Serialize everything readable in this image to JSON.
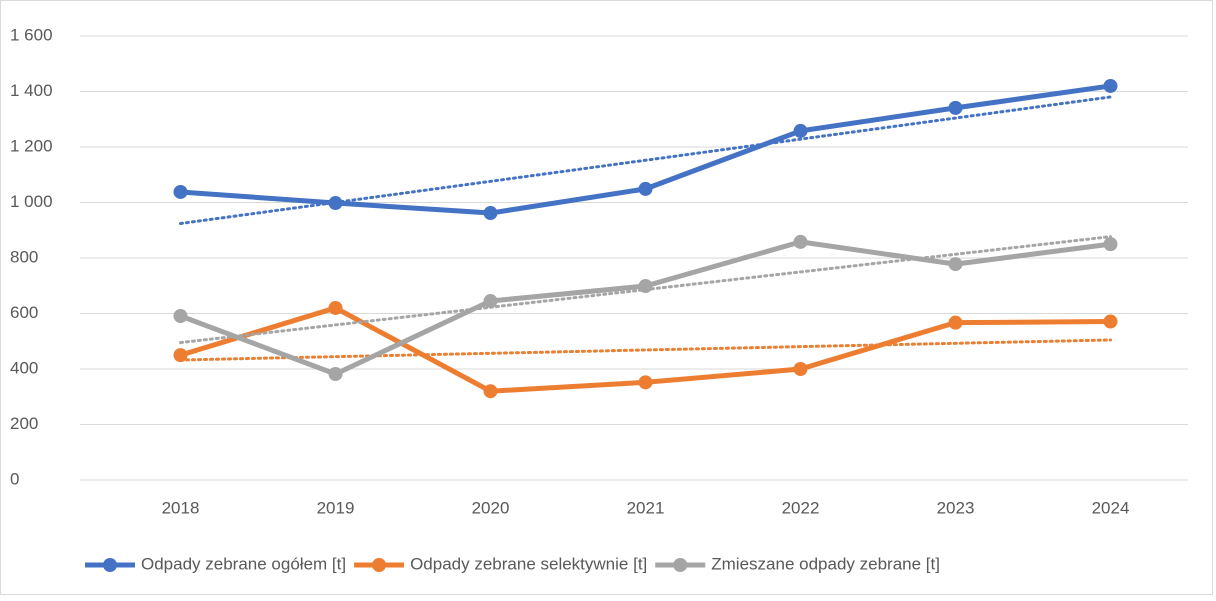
{
  "chart_data": {
    "type": "line",
    "categories": [
      "2018",
      "2019",
      "2020",
      "2021",
      "2022",
      "2023",
      "2024"
    ],
    "series": [
      {
        "name": "Odpady zebrane ogółem [t]",
        "color": "#4472c4",
        "values": [
          1038,
          998,
          962,
          1049,
          1258,
          1341,
          1420
        ]
      },
      {
        "name": "Odpady zebrane selektywnie [t]",
        "color": "#ed7d31",
        "values": [
          450,
          620,
          320,
          352,
          400,
          567,
          571
        ]
      },
      {
        "name": "Zmieszane odpady zebrane [t]",
        "color": "#a5a5a5",
        "values": [
          591,
          382,
          645,
          699,
          858,
          778,
          850
        ]
      }
    ],
    "ylim": [
      0,
      1600
    ],
    "yticks": [
      0,
      200,
      400,
      600,
      800,
      {
        "value": 1000,
        "label": "1 000"
      },
      {
        "value": 1200,
        "label": "1 200"
      },
      {
        "value": 1400,
        "label": "1 400"
      },
      {
        "value": 1600,
        "label": "1 600"
      }
    ],
    "grid": true,
    "trendline": "linear",
    "legend": "bottom"
  }
}
